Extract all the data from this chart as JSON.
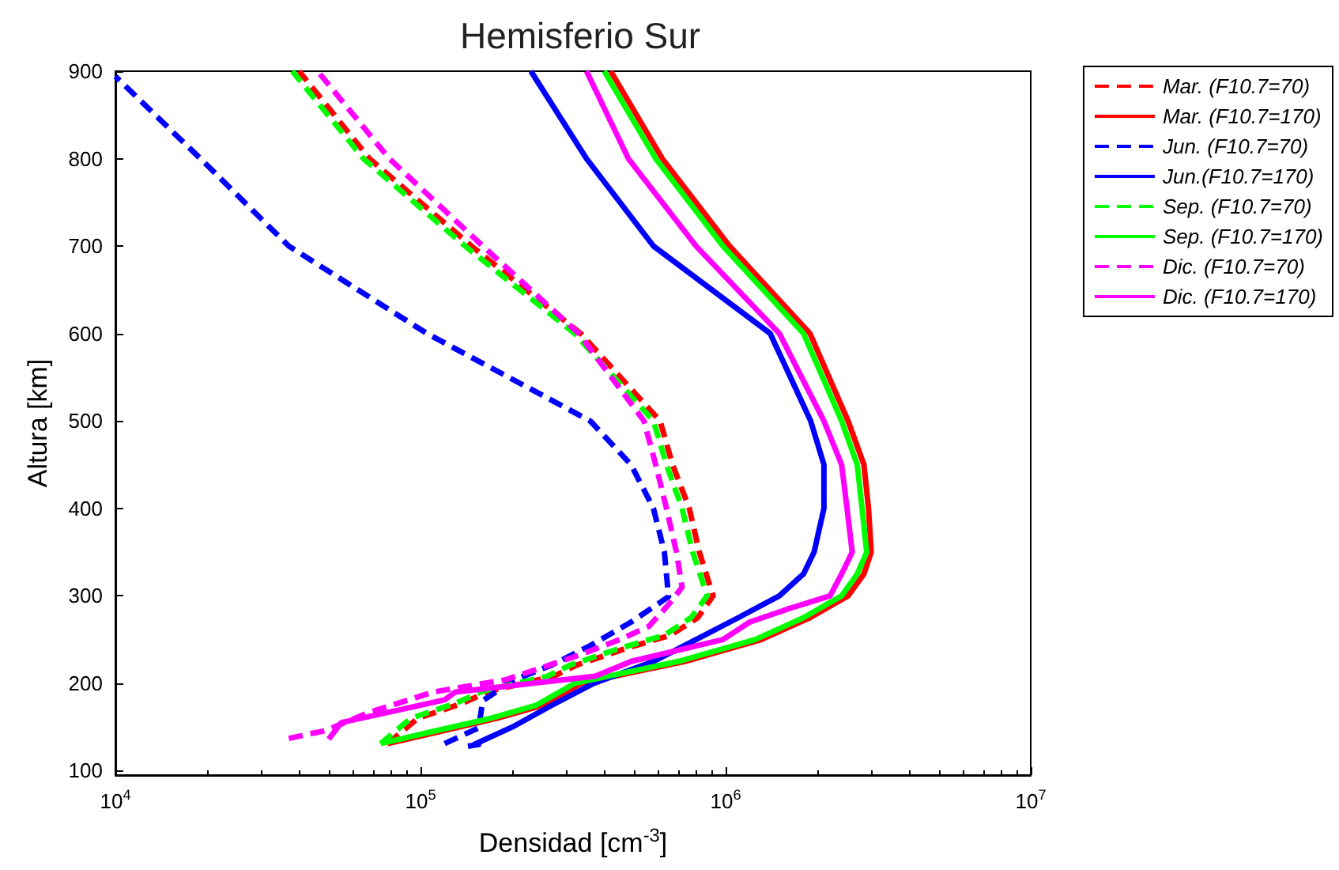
{
  "chart_data": {
    "type": "line",
    "title": "Hemisferio Sur",
    "xlabel": "Densidad [cm$^{-3}$]",
    "ylabel": "Altura [km]",
    "log": "x",
    "grid": false,
    "legend": "right",
    "marker": "none",
    "xlim": [
      10000,
      10000000
    ],
    "xticks": [
      {
        "value": 10000,
        "label": "10$^{4}$"
      },
      {
        "value": 100000,
        "label": "10$^{5}$"
      },
      {
        "value": 1000000,
        "label": "10$^{6}$"
      },
      {
        "value": 10000000,
        "label": "10$^{7}$"
      }
    ],
    "ylim": [
      95,
      900
    ],
    "yticks": [
      100,
      200,
      300,
      400,
      500,
      600,
      700,
      800,
      900
    ],
    "series": [
      {
        "name": "Mar. (F10.7=70)",
        "color": "#ff0000",
        "line_style": "dashed",
        "x": [
          78000,
          98000,
          137000,
          168000,
          273000,
          326000,
          473000,
          660000,
          810000,
          910000,
          820000,
          760000,
          670000,
          610000,
          335000,
          147000,
          68000,
          40000
        ],
        "values": [
          131,
          160,
          177,
          191,
          208,
          221,
          240,
          255,
          275,
          300,
          350,
          400,
          450,
          500,
          600,
          700,
          800,
          900
        ]
      },
      {
        "name": "Mar. (F10.7=170)",
        "color": "#ff0000",
        "line_style": "solid",
        "x": [
          78000,
          116000,
          178000,
          252000,
          336000,
          735000,
          1310000,
          1890000,
          2520000,
          2840000,
          3000000,
          2940000,
          2840000,
          2520000,
          1890000,
          1030000,
          620000,
          420000
        ],
        "values": [
          131,
          145,
          160,
          175,
          200,
          225,
          250,
          275,
          300,
          325,
          350,
          400,
          450,
          500,
          600,
          700,
          800,
          900
        ]
      },
      {
        "name": "Jun. (F10.7=70)",
        "color": "#0000ff",
        "line_style": "dashed",
        "x": [
          120000,
          155000,
          160000,
          200000,
          270000,
          360000,
          490000,
          650000,
          630000,
          580000,
          490000,
          360000,
          105000,
          37000,
          19000,
          10000
        ],
        "values": [
          131,
          149,
          180,
          203,
          221,
          243,
          270,
          299,
          350,
          400,
          450,
          500,
          600,
          700,
          800,
          894
        ]
      },
      {
        "name": "Jun.(F10.7=170)",
        "color": "#0000ff",
        "line_style": "solid",
        "x": [
          143000,
          155000,
          150000,
          200000,
          270000,
          370000,
          580000,
          800000,
          1100000,
          1500000,
          1800000,
          1950000,
          2100000,
          2100000,
          1900000,
          1400000,
          580000,
          350000,
          230000
        ],
        "values": [
          128,
          130,
          130,
          150,
          175,
          200,
          225,
          250,
          275,
          300,
          325,
          350,
          400,
          450,
          500,
          600,
          700,
          800,
          900
        ]
      },
      {
        "name": "Sep. (F10.7=70)",
        "color": "#00ff00",
        "line_style": "dashed",
        "x": [
          74000,
          93000,
          130000,
          160000,
          260000,
          310000,
          450000,
          630000,
          770000,
          870000,
          780000,
          720000,
          640000,
          580000,
          320000,
          140000,
          65000,
          38000
        ],
        "values": [
          131,
          160,
          177,
          191,
          208,
          221,
          240,
          255,
          275,
          300,
          350,
          400,
          450,
          500,
          600,
          700,
          800,
          900
        ]
      },
      {
        "name": "Sep. (F10.7=170)",
        "color": "#00ff00",
        "line_style": "solid",
        "x": [
          74000,
          110000,
          170000,
          240000,
          320000,
          700000,
          1250000,
          1800000,
          2400000,
          2700000,
          2900000,
          2800000,
          2700000,
          2400000,
          1800000,
          980000,
          590000,
          400000
        ],
        "values": [
          131,
          145,
          160,
          175,
          200,
          225,
          250,
          275,
          300,
          325,
          350,
          400,
          450,
          500,
          600,
          700,
          800,
          900
        ]
      },
      {
        "name": "Dic. (F10.7=70)",
        "color": "#ff00ff",
        "line_style": "dashed",
        "x": [
          37000,
          49000,
          67000,
          110000,
          190000,
          330000,
          450000,
          560000,
          650000,
          720000,
          690000,
          640000,
          590000,
          540000,
          330000,
          160000,
          79000,
          46000
        ],
        "values": [
          137,
          146,
          166,
          190,
          204,
          232,
          250,
          265,
          290,
          310,
          350,
          400,
          450,
          500,
          600,
          700,
          800,
          900
        ]
      },
      {
        "name": "Dic. (F10.7=170)",
        "color": "#ff00ff",
        "line_style": "solid",
        "x": [
          50000,
          55000,
          120000,
          130000,
          373000,
          490000,
          980000,
          1200000,
          1600000,
          2200000,
          2400000,
          2600000,
          2500000,
          2400000,
          2100000,
          1500000,
          800000,
          480000,
          350000
        ],
        "values": [
          136,
          155,
          181,
          190,
          208,
          225,
          250,
          270,
          285,
          300,
          325,
          350,
          400,
          450,
          500,
          600,
          700,
          800,
          900
        ]
      }
    ]
  }
}
